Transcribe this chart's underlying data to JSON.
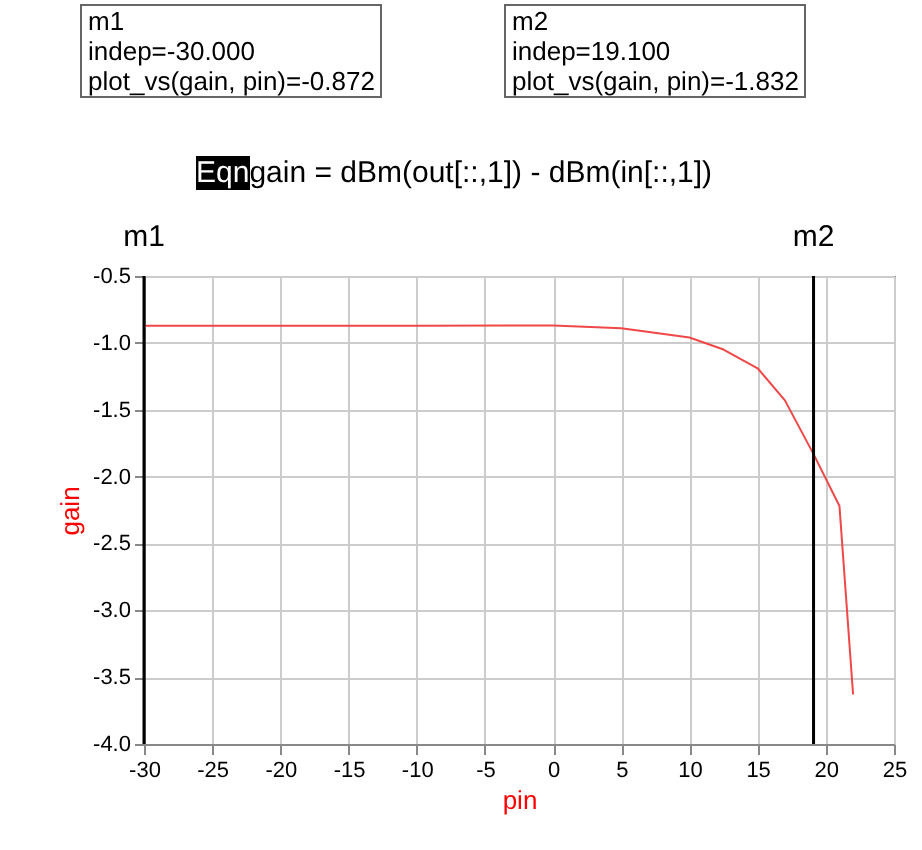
{
  "chart_data": {
    "type": "line",
    "xlabel": "pin",
    "ylabel": "gain",
    "annotations": [
      "m1\nindep=-30.000\nplot_vs(gain, pin)=-0.872",
      "m2\nindep=19.100\nplot_vs(gain, pin)=-1.832",
      "Eqn",
      "gain = dBm(out[::,1]) - dBm(in[::,1])"
    ],
    "x": [
      -30,
      -20,
      -10,
      0,
      5,
      10,
      12.5,
      15,
      17,
      19.1,
      21,
      22
    ],
    "series": [
      {
        "color": "#f04848",
        "values": [
          -0.872,
          -0.872,
          -0.872,
          -0.87,
          -0.89,
          -0.96,
          -1.05,
          -1.19,
          -1.43,
          -1.832,
          -2.22,
          -3.63
        ]
      }
    ],
    "xlim": [
      -30,
      25
    ],
    "xticks": [
      -30,
      -25,
      -20,
      -15,
      -10,
      -5,
      0,
      5,
      10,
      15,
      20,
      25
    ],
    "ylim": [
      -4,
      -0.5
    ],
    "yticks": [
      {
        "value": -4,
        "label": "-4.0"
      },
      -3.5,
      {
        "value": -3,
        "label": "-3.0"
      },
      -2.5,
      {
        "value": -2,
        "label": "-2.0"
      },
      -1.5,
      {
        "value": -1,
        "label": "-1.0"
      },
      -0.5
    ],
    "ref_lines": [
      {
        "axis": "x",
        "value": -30,
        "label": "m1",
        "color": "#000000"
      },
      {
        "axis": "x",
        "value": 19.1,
        "label": "m2",
        "color": "#000000"
      }
    ],
    "grid": true,
    "marker": "none",
    "line_style": "solid"
  }
}
